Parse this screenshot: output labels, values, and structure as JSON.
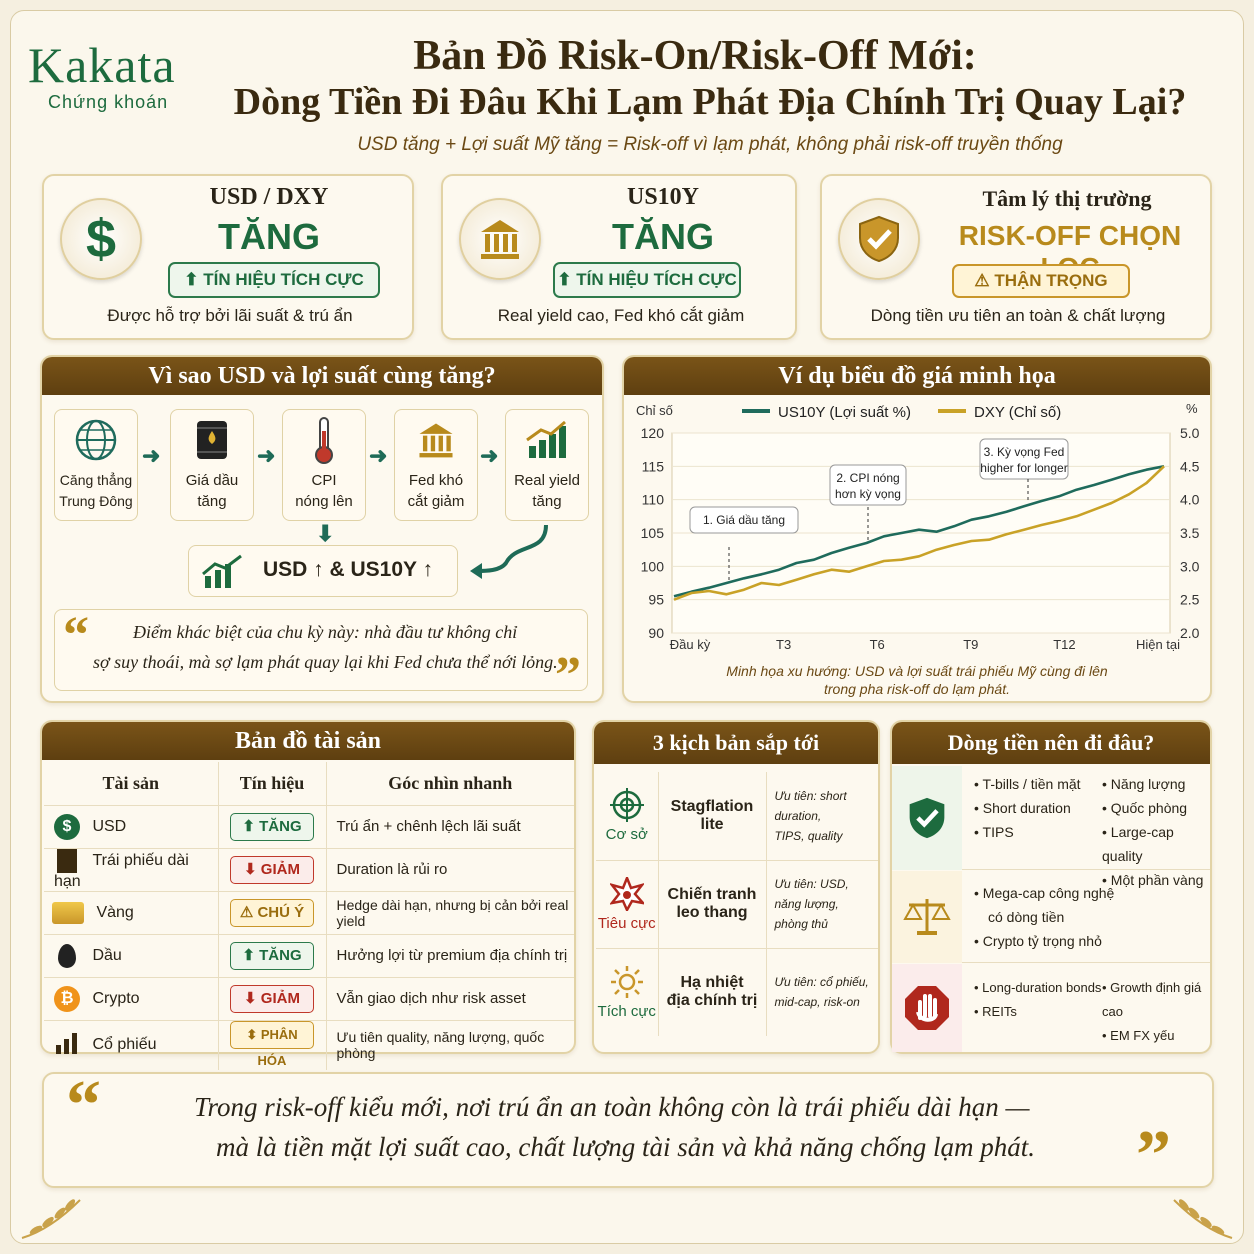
{
  "brand": {
    "name": "Kakata",
    "sub": "Chứng khoán"
  },
  "title": {
    "line1": "Bản Đồ Risk-On/Risk-Off Mới:",
    "line2": "Dòng Tiền Đi Đâu Khi Lạm Phát Địa Chính Trị Quay Lại?",
    "subtitle": "USD tăng + Lợi suất Mỹ tăng = Risk-off vì lạm phát, không phải risk-off truyền thống"
  },
  "top_cards": [
    {
      "label": "USD / DXY",
      "value": "TĂNG",
      "pill": "TÍN HIỆU TÍCH CỰC",
      "desc": "Được hỗ trợ bởi lãi suất & trú ẩn",
      "icon": "dollar-icon"
    },
    {
      "label": "US10Y",
      "value": "TĂNG",
      "pill": "TÍN HIỆU TÍCH CỰC",
      "desc": "Real yield cao, Fed khó cắt giảm",
      "icon": "bank-icon"
    },
    {
      "label": "Tâm lý thị trường",
      "value": "RISK-OFF CHỌN LỌC",
      "pill": "THẬN TRỌNG",
      "desc": "Dòng tiền ưu tiên an toàn & chất lượng",
      "icon": "shield-check-icon"
    }
  ],
  "why": {
    "title": "Vì sao USD và lợi suất cùng tăng?",
    "steps": [
      {
        "l1": "Căng thẳng",
        "l2": "Trung Đông",
        "icon": "globe-icon"
      },
      {
        "l1": "Giá dầu",
        "l2": "tăng",
        "icon": "oil-barrel-icon"
      },
      {
        "l1": "CPI",
        "l2": "nóng lên",
        "icon": "thermometer-icon"
      },
      {
        "l1": "Fed khó",
        "l2": "cắt giảm",
        "icon": "bank-icon"
      },
      {
        "l1": "Real yield",
        "l2": "tăng",
        "icon": "bar-chart-up-icon"
      }
    ],
    "result": "USD ↑ & US10Y ↑",
    "quote1": "Điểm khác biệt của chu kỳ này: nhà đầu tư không chỉ",
    "quote2": "sợ suy thoái, mà sợ lạm phát quay lại khi Fed chưa thể nới lỏng."
  },
  "chart_section": {
    "title": "Ví dụ biểu đồ giá minh họa",
    "caption1": "Minh họa xu hướng: USD và lợi suất trái phiếu Mỹ cùng đi lên",
    "caption2": "trong pha risk-off do lạm phát."
  },
  "chart_data": {
    "type": "line",
    "left_axis_label": "Chỉ số",
    "right_axis_label": "%",
    "x_ticks": [
      "Đầu kỳ",
      "T3",
      "T6",
      "T9",
      "T12",
      "Hiện tại"
    ],
    "y_left_ticks": [
      "120",
      "115",
      "110",
      "105",
      "100",
      "95",
      "90"
    ],
    "y_right_ticks": [
      "5.0",
      "4.5",
      "4.0",
      "3.5",
      "3.0",
      "2.5",
      "2.0"
    ],
    "ylim_left": [
      90,
      120
    ],
    "ylim_right": [
      2.0,
      5.0
    ],
    "grid": true,
    "legend_position": "top",
    "series": [
      {
        "name": "US10Y",
        "name_suffix": "(Lợi suất %)",
        "color": "#1f6b5c",
        "axis": "right",
        "values": [
          2.55,
          2.62,
          2.68,
          2.75,
          2.82,
          2.88,
          2.95,
          3.05,
          3.1,
          3.2,
          3.28,
          3.35,
          3.45,
          3.5,
          3.55,
          3.52,
          3.6,
          3.7,
          3.75,
          3.82,
          3.9,
          3.98,
          4.05,
          4.15,
          4.22,
          4.3,
          4.38,
          4.45,
          4.5
        ]
      },
      {
        "name": "DXY",
        "name_suffix": "(Chỉ số)",
        "color": "#c9a227",
        "axis": "left",
        "values": [
          95.0,
          96.0,
          96.3,
          95.8,
          96.5,
          97.5,
          97.2,
          98.0,
          98.8,
          99.5,
          99.2,
          100.0,
          100.8,
          101.0,
          101.5,
          102.5,
          103.2,
          103.8,
          104.0,
          104.8,
          105.5,
          106.2,
          106.8,
          107.5,
          108.5,
          109.5,
          110.8,
          112.5,
          115.0
        ]
      }
    ],
    "annotations": [
      {
        "text1": "1. Giá dầu tăng",
        "text2": ""
      },
      {
        "text1": "2. CPI nóng",
        "text2": "hơn kỳ vọng"
      },
      {
        "text1": "3. Kỳ vọng Fed",
        "text2": "higher for longer"
      }
    ]
  },
  "assets": {
    "title": "Bản đồ tài sản",
    "headers": [
      "Tài sản",
      "Tín hiệu",
      "Góc nhìn nhanh"
    ],
    "rows": [
      {
        "name": "USD",
        "signal": "TĂNG",
        "kind": "up",
        "view": "Trú ẩn + chênh lệch lãi suất",
        "icon": "dollar-circle-icon"
      },
      {
        "name": "Trái phiếu dài hạn",
        "signal": "GIẢM",
        "kind": "down",
        "view": "Duration là rủi ro",
        "icon": "document-icon"
      },
      {
        "name": "Vàng",
        "signal": "CHÚ Ý",
        "kind": "warn",
        "view": "Hedge dài hạn, nhưng bị cản bởi real yield",
        "icon": "gold-bars-icon"
      },
      {
        "name": "Dầu",
        "signal": "TĂNG",
        "kind": "up",
        "view": "Hưởng lợi từ premium địa chính trị",
        "icon": "oil-drop-icon"
      },
      {
        "name": "Crypto",
        "signal": "GIẢM",
        "kind": "down",
        "view": "Vẫn giao dịch như risk asset",
        "icon": "bitcoin-icon"
      },
      {
        "name": "Cổ phiếu",
        "signal": "PHÂN HÓA",
        "kind": "warn",
        "view": "Ưu tiên quality, năng lượng, quốc phòng",
        "icon": "bar-chart-icon"
      }
    ]
  },
  "scenarios": {
    "title": "3 kịch bản sắp tới",
    "rows": [
      {
        "case": "Cơ sở",
        "name1": "Stagflation lite",
        "name2": "",
        "pri1": "Ưu tiên: short duration,",
        "pri2": "TIPS, quality",
        "icon": "target-icon",
        "color": "#1d6b3e"
      },
      {
        "case": "Tiêu cực",
        "name1": "Chiến tranh",
        "name2": "leo thang",
        "pri1": "Ưu tiên: USD, năng lượng,",
        "pri2": "phòng thủ",
        "icon": "explosion-icon",
        "color": "#b0281d"
      },
      {
        "case": "Tích cực",
        "name1": "Hạ nhiệt",
        "name2": "địa chính trị",
        "pri1": "Ưu tiên: cổ phiếu,",
        "pri2": "mid-cap, risk-on",
        "icon": "sun-icon",
        "color": "#1d6b3e"
      }
    ]
  },
  "flows": {
    "title": "Dòng tiền nên đi đâu?",
    "groups": [
      {
        "icon": "shield-check-icon",
        "left": [
          "T-bills / tiền mặt",
          "Short duration",
          "TIPS"
        ],
        "right": [
          "Năng lượng",
          "Quốc phòng",
          "Large-cap quality",
          "Một phần vàng"
        ]
      },
      {
        "icon": "scale-icon",
        "left": [
          "Mega-cap công nghệ",
          "có dòng tiền",
          "Crypto tỷ trọng nhỏ"
        ],
        "right": []
      },
      {
        "icon": "stop-hand-icon",
        "left": [
          "Long-duration bonds",
          "REITs"
        ],
        "right": [
          "Growth định giá cao",
          "EM FX yếu"
        ]
      }
    ]
  },
  "bottom_quote": {
    "line1": "Trong risk-off kiểu mới, nơi trú ẩn an toàn không còn là trái phiếu dài hạn —",
    "line2": "mà là tiền mặt lợi suất cao, chất lượng tài sản và khả năng chống lạm phát."
  },
  "colors": {
    "green": "#1d6b3e",
    "gold": "#c9a227",
    "brown": "#6b4914",
    "red": "#b0281d"
  }
}
